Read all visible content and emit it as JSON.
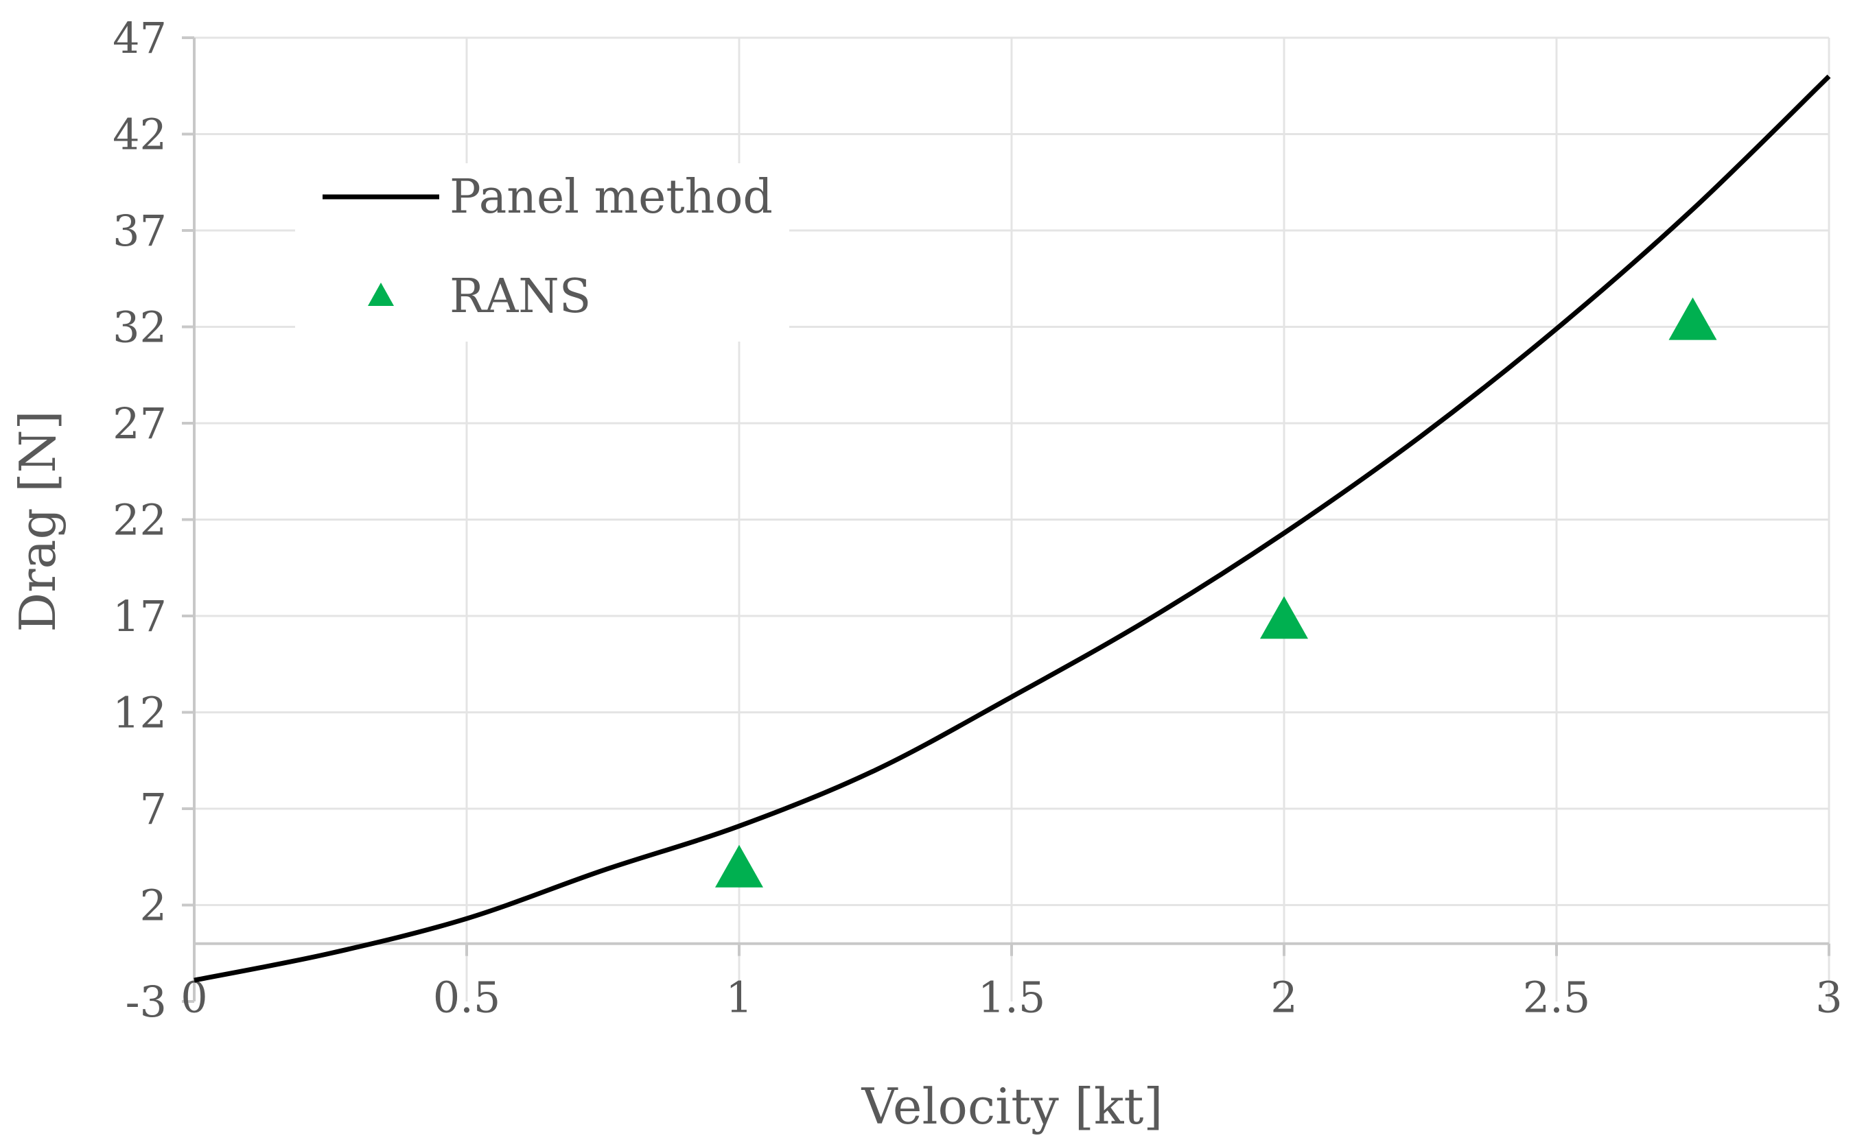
{
  "chart_data": {
    "type": "line",
    "xlabel": "Velocity [kt]",
    "ylabel": "Drag [N]",
    "xlim": [
      0,
      3
    ],
    "ylim": [
      -3,
      47
    ],
    "x_ticks": [
      "0",
      "0.5",
      "1",
      "1.5",
      "2",
      "2.5",
      "3"
    ],
    "y_ticks": [
      "-3",
      "2",
      "7",
      "12",
      "17",
      "22",
      "27",
      "32",
      "37",
      "42",
      "47"
    ],
    "grid": true,
    "legend_position": "top-left",
    "series": [
      {
        "name": "Panel method",
        "style": "line",
        "color": "#000000",
        "x": [
          0,
          0.25,
          0.5,
          0.75,
          1,
          1.25,
          1.5,
          1.75,
          2,
          2.25,
          2.5,
          2.75,
          3
        ],
        "y": [
          -1.9,
          -0.5,
          1.3,
          3.8,
          6.1,
          9.0,
          12.8,
          16.8,
          21.3,
          26.3,
          31.9,
          38.1,
          45.0
        ]
      },
      {
        "name": "RANS",
        "style": "marker",
        "marker": "triangle",
        "color": "#00b050",
        "x": [
          1,
          2,
          2.75
        ],
        "y": [
          3.8,
          16.7,
          32.2
        ]
      }
    ]
  }
}
